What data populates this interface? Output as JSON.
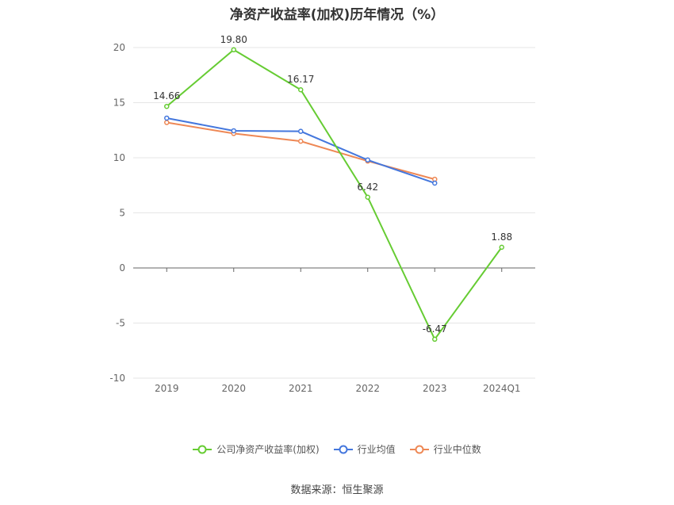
{
  "title": "净资产收益率(加权)历年情况（%）",
  "source": "数据来源：恒生聚源",
  "chart_data": {
    "type": "line",
    "title": "净资产收益率(加权)历年情况（%）",
    "categories": [
      "2019",
      "2020",
      "2021",
      "2022",
      "2023",
      "2024Q1"
    ],
    "ylim": [
      -10,
      20
    ],
    "yticks": [
      -10,
      -5,
      0,
      5,
      10,
      15,
      20
    ],
    "grid": true,
    "legend_position": "bottom",
    "series": [
      {
        "name": "公司净资产收益率(加权)",
        "color": "#66cc33",
        "values": [
          14.66,
          19.8,
          16.17,
          6.42,
          -6.47,
          1.88
        ],
        "labels": [
          "14.66",
          "19.80",
          "16.17",
          "6.42",
          "-6.47",
          "1.88"
        ]
      },
      {
        "name": "行业均值",
        "color": "#4477dd",
        "values": [
          13.6,
          12.45,
          12.4,
          9.8,
          7.7,
          null
        ]
      },
      {
        "name": "行业中位数",
        "color": "#ee8855",
        "values": [
          13.2,
          12.2,
          11.5,
          9.7,
          8.05,
          null
        ]
      }
    ]
  }
}
